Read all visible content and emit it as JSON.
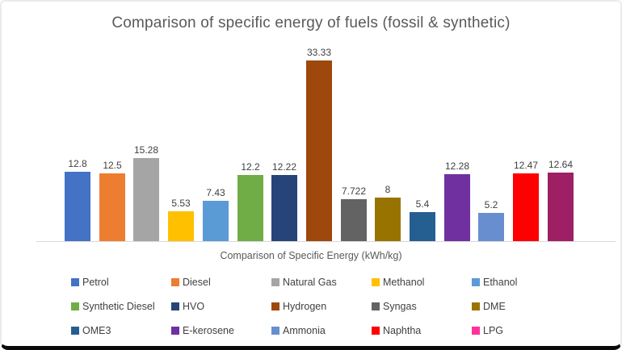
{
  "window": {
    "background_color": "#ffffff",
    "frame_border_color": "#ebebeb",
    "bottom_bar_color": "#0a0a0a"
  },
  "chart_data": {
    "type": "bar",
    "title": "Comparison of specific energy of fuels (fossil & synthetic)",
    "xlabel": "Comparison of Specific Energy (kWh/kg)",
    "ylabel": "",
    "ylim": [
      0,
      35
    ],
    "grid": false,
    "y_axis_visible": false,
    "legend_position": "bottom",
    "legend_columns": 5,
    "categories": [
      "Petrol",
      "Diesel",
      "Natural Gas",
      "Methanol",
      "Ethanol",
      "Synthetic Diesel",
      "HVO",
      "Hydrogen",
      "Syngas",
      "DME",
      "OME3",
      "E-kerosene",
      "Ammonia",
      "Naphtha",
      "LPG"
    ],
    "values": [
      12.8,
      12.5,
      15.28,
      5.53,
      7.43,
      12.2,
      12.22,
      33.33,
      7.722,
      8,
      5.4,
      12.28,
      5.2,
      12.47,
      12.64
    ],
    "value_labels": [
      "12.8",
      "12.5",
      "15.28",
      "5.53",
      "7.43",
      "12.2",
      "12.22",
      "33.33",
      "7.722",
      "8",
      "5.4",
      "12.28",
      "5.2",
      "12.47",
      "12.64"
    ],
    "bar_colors": [
      "#4472C4",
      "#ED7D31",
      "#A5A5A5",
      "#FFC000",
      "#5B9BD5",
      "#70AD47",
      "#264478",
      "#9E480E",
      "#636363",
      "#997300",
      "#255E91",
      "#7030A0",
      "#698ED0",
      "#FF0000",
      "#9E1F63"
    ],
    "legend_colors": [
      "#4472C4",
      "#ED7D31",
      "#A5A5A5",
      "#FFC000",
      "#5B9BD5",
      "#70AD47",
      "#264478",
      "#9E480E",
      "#636363",
      "#997300",
      "#255E91",
      "#7030A0",
      "#698ED0",
      "#FF0000",
      "#FF3399"
    ],
    "title_color": "#595959",
    "value_label_color": "#404040",
    "axis_line_color": "#d9d9d9"
  }
}
